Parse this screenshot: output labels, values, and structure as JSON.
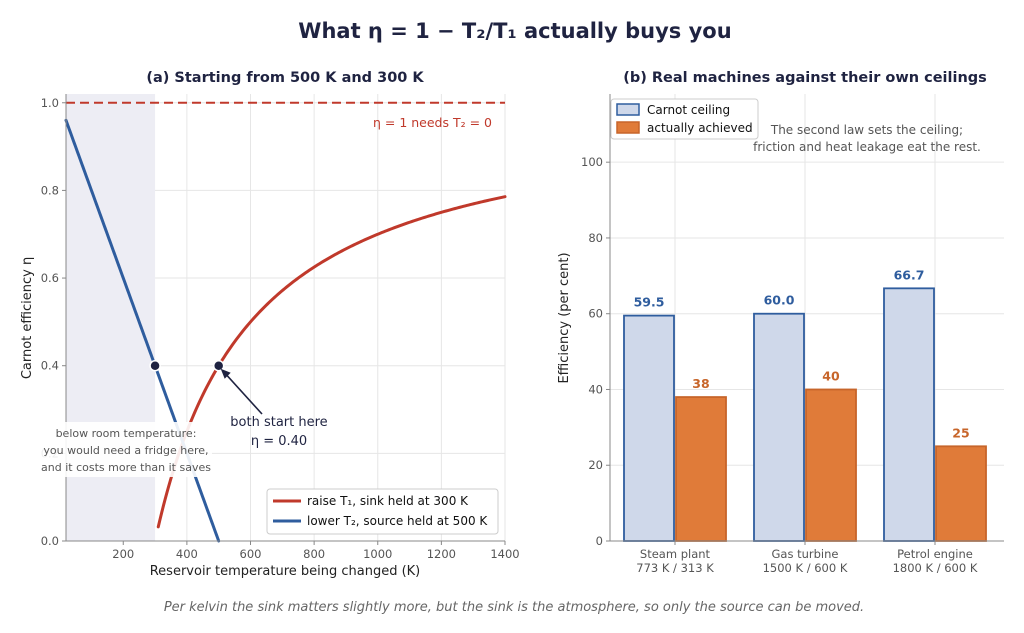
{
  "figure": {
    "title": "What η = 1 − T₂/T₁ actually buys you",
    "footer": "Per kelvin the sink matters slightly more, but the sink is the atmosphere, so only the source can be moved."
  },
  "colors": {
    "red": "#c0392b",
    "blue": "#2f5d9e",
    "orange": "#e07b39",
    "ceiling_fill": "#cfd8ea",
    "shade": "#ededf4",
    "dark": "#1f2341"
  },
  "chart_data": [
    {
      "type": "line",
      "title": "(a) Starting from 500 K and 300 K",
      "xlabel": "Reservoir temperature being changed (K)",
      "ylabel": "Carnot efficiency η",
      "xlim": [
        20,
        1400
      ],
      "ylim": [
        0,
        1.02
      ],
      "xticks": [
        200,
        400,
        600,
        800,
        1000,
        1200,
        1400
      ],
      "yticks": [
        0.0,
        0.2,
        0.4,
        0.6,
        0.8,
        1.0
      ],
      "grid": true,
      "series": [
        {
          "name": "raise T₁, sink held at 300 K",
          "color": "#c0392b",
          "formula": "1 - 300/T",
          "x_range": [
            310,
            1400
          ]
        },
        {
          "name": "lower T₂, source held at 500 K",
          "color": "#2f5d9e",
          "formula": "1 - T/500",
          "x_range": [
            20,
            500
          ]
        }
      ],
      "reference_line": {
        "y": 1.0,
        "label": "η = 1 needs T₂ = 0"
      },
      "shaded_region": {
        "x": [
          20,
          300
        ],
        "label_lines": [
          "below room temperature:",
          "you would need a fridge here,",
          "and it costs more than it saves"
        ]
      },
      "points": [
        {
          "x": 300,
          "y": 0.4
        },
        {
          "x": 500,
          "y": 0.4
        }
      ],
      "annotation": {
        "lines": [
          "both start here",
          "η = 0.40"
        ]
      },
      "legend": "bottom-right"
    },
    {
      "type": "bar",
      "title": "(b) Real machines against their own ceilings",
      "ylabel": "Efficiency (per cent)",
      "ylim": [
        0,
        118
      ],
      "yticks": [
        0,
        20,
        40,
        60,
        80,
        100
      ],
      "grid": true,
      "categories": [
        [
          "Steam plant",
          "773 K / 313 K"
        ],
        [
          "Gas turbine",
          "1500 K / 600 K"
        ],
        [
          "Petrol engine",
          "1800 K / 600 K"
        ]
      ],
      "series": [
        {
          "name": "Carnot ceiling",
          "values": [
            59.5,
            60.0,
            66.7
          ],
          "labels": [
            "59.5",
            "60.0",
            "66.7"
          ]
        },
        {
          "name": "actually achieved",
          "values": [
            38,
            40,
            25
          ],
          "labels": [
            "38",
            "40",
            "25"
          ]
        }
      ],
      "note": [
        "The second law sets the ceiling;",
        "friction and heat leakage eat the rest."
      ],
      "legend": "top-left"
    }
  ]
}
